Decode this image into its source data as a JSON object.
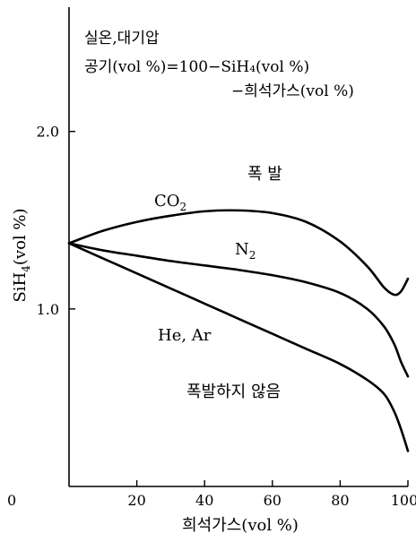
{
  "chart_data": {
    "type": "line",
    "notes": [
      "실온,대기압",
      "공기(vol %)=100−SiH₄(vol %)",
      "−희석가스(vol %)"
    ],
    "xlabel": "희석가스(vol %)",
    "ylabel_main": "SiH",
    "ylabel_sub": "4",
    "ylabel_unit": "(vol %)",
    "xlim": [
      0,
      100
    ],
    "ylim": [
      0,
      2.7
    ],
    "x_ticks": [
      0,
      20,
      40,
      60,
      80,
      100
    ],
    "x_tick_labels": [
      "0",
      "20",
      "40",
      "60",
      "80",
      "100"
    ],
    "y_ticks": [
      1.0,
      2.0
    ],
    "y_tick_labels": [
      "1.0",
      "2.0"
    ],
    "region_labels": {
      "explosion": "폭 발",
      "no_explosion": "폭발하지 않음"
    },
    "series": [
      {
        "name": "CO₂",
        "label_main": "CO",
        "label_sub": "2",
        "x": [
          0,
          10,
          20,
          30,
          40,
          50,
          60,
          70,
          80,
          88,
          93,
          96,
          98,
          100
        ],
        "y": [
          1.37,
          1.44,
          1.49,
          1.525,
          1.55,
          1.555,
          1.54,
          1.49,
          1.38,
          1.24,
          1.12,
          1.08,
          1.1,
          1.17
        ]
      },
      {
        "name": "N₂",
        "label_main": "N",
        "label_sub": "2",
        "x": [
          0,
          10,
          20,
          30,
          40,
          50,
          60,
          70,
          80,
          88,
          93,
          96,
          98,
          100
        ],
        "y": [
          1.37,
          1.33,
          1.3,
          1.27,
          1.245,
          1.22,
          1.19,
          1.15,
          1.09,
          1.0,
          0.9,
          0.8,
          0.7,
          0.62
        ]
      },
      {
        "name": "He, Ar",
        "label_main": "He, Ar",
        "label_sub": "",
        "x": [
          0,
          10,
          20,
          30,
          40,
          50,
          60,
          70,
          80,
          88,
          93,
          96,
          98,
          100
        ],
        "y": [
          1.37,
          1.285,
          1.2,
          1.115,
          1.03,
          0.945,
          0.86,
          0.775,
          0.69,
          0.6,
          0.52,
          0.42,
          0.32,
          0.2
        ]
      }
    ]
  }
}
